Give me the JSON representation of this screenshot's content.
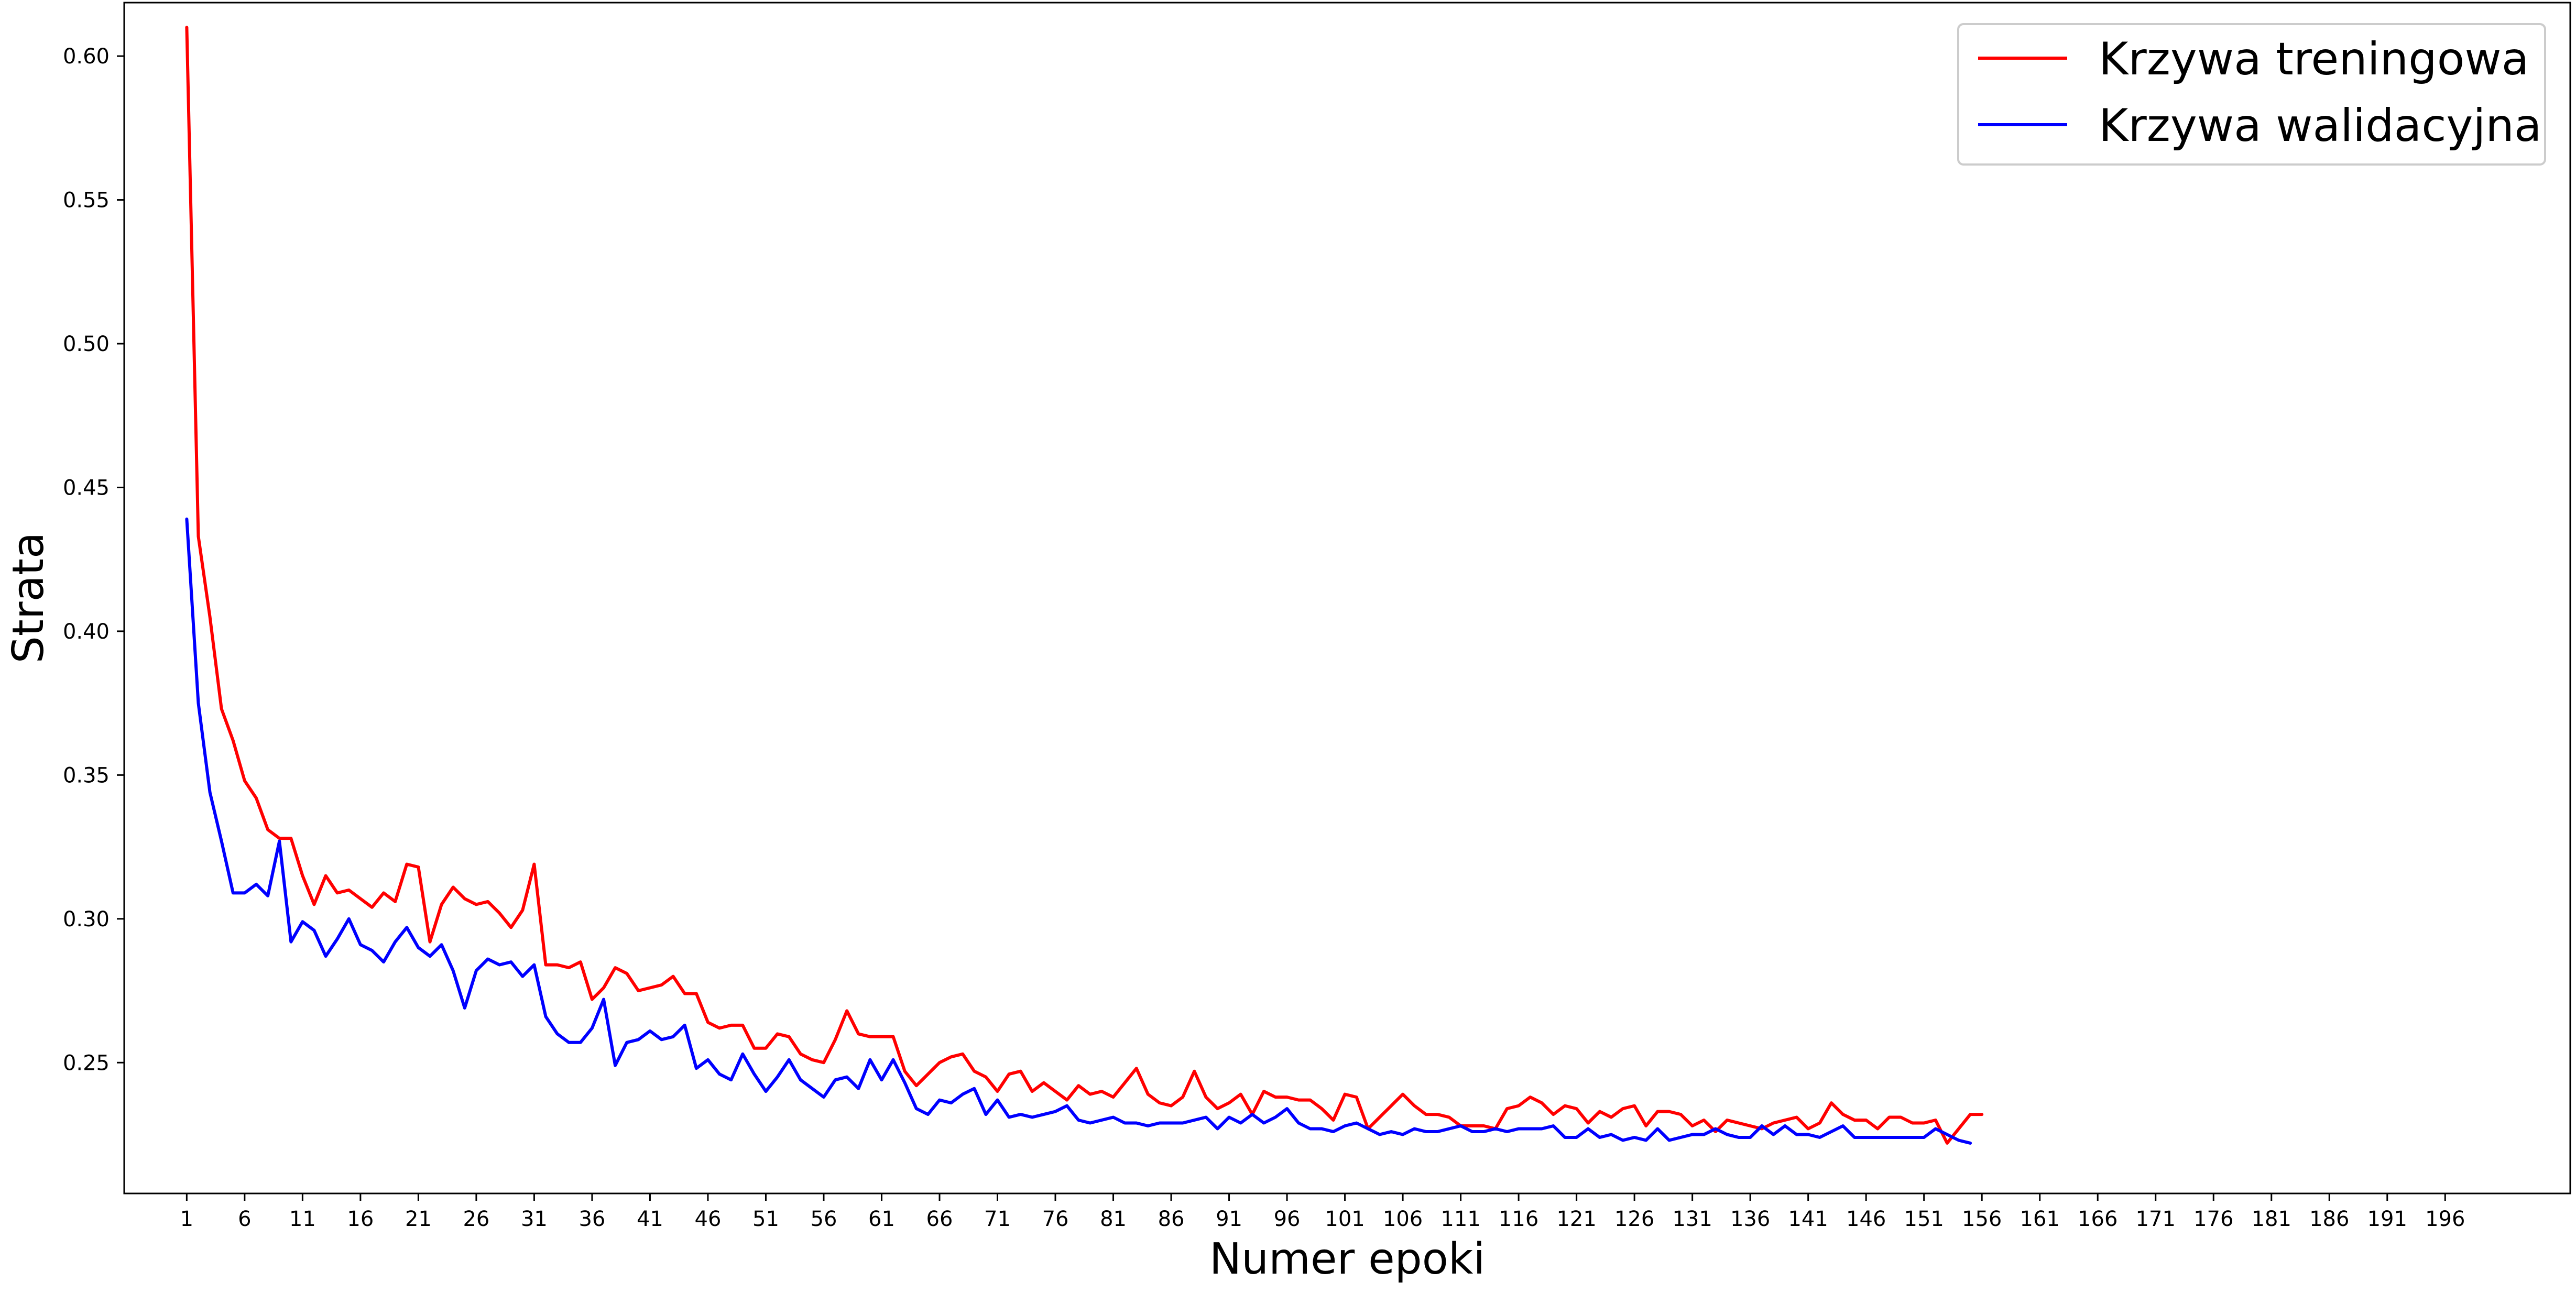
{
  "chart_data": {
    "type": "line",
    "xlabel": "Numer epoki",
    "ylabel": "Strata",
    "xlim": [
      -4.4,
      206.8
    ],
    "ylim": [
      0.2045,
      0.6186
    ],
    "x_ticks": [
      1,
      6,
      11,
      16,
      21,
      26,
      31,
      36,
      41,
      46,
      51,
      56,
      61,
      66,
      71,
      76,
      81,
      86,
      91,
      96,
      101,
      106,
      111,
      116,
      121,
      126,
      131,
      136,
      141,
      146,
      151,
      156,
      161,
      166,
      171,
      176,
      181,
      186,
      191,
      196
    ],
    "y_ticks": [
      0.25,
      0.3,
      0.35,
      0.4,
      0.45,
      0.5,
      0.55,
      0.6
    ],
    "grid": false,
    "legend_position": "top-right",
    "series": [
      {
        "name": "Krzywa treningowa",
        "color": "#ff0000",
        "x_start": 1,
        "values": [
          0.61,
          0.433,
          0.405,
          0.373,
          0.362,
          0.348,
          0.342,
          0.331,
          0.328,
          0.328,
          0.315,
          0.305,
          0.315,
          0.309,
          0.31,
          0.307,
          0.304,
          0.309,
          0.306,
          0.319,
          0.318,
          0.292,
          0.305,
          0.311,
          0.307,
          0.305,
          0.306,
          0.302,
          0.297,
          0.303,
          0.319,
          0.284,
          0.284,
          0.283,
          0.285,
          0.272,
          0.276,
          0.283,
          0.281,
          0.275,
          0.276,
          0.277,
          0.28,
          0.274,
          0.274,
          0.264,
          0.262,
          0.263,
          0.263,
          0.255,
          0.255,
          0.26,
          0.259,
          0.253,
          0.251,
          0.25,
          0.258,
          0.268,
          0.26,
          0.259,
          0.259,
          0.259,
          0.247,
          0.242,
          0.246,
          0.25,
          0.252,
          0.253,
          0.247,
          0.245,
          0.24,
          0.246,
          0.247,
          0.24,
          0.243,
          0.24,
          0.237,
          0.242,
          0.239,
          0.24,
          0.238,
          0.243,
          0.248,
          0.239,
          0.236,
          0.235,
          0.238,
          0.247,
          0.238,
          0.234,
          0.236,
          0.239,
          0.232,
          0.24,
          0.238,
          0.238,
          0.237,
          0.237,
          0.234,
          0.23,
          0.239,
          0.238,
          0.227,
          0.231,
          0.235,
          0.239,
          0.235,
          0.232,
          0.232,
          0.231,
          0.228,
          0.228,
          0.228,
          0.227,
          0.234,
          0.235,
          0.238,
          0.236,
          0.232,
          0.235,
          0.234,
          0.229,
          0.233,
          0.231,
          0.234,
          0.235,
          0.228,
          0.233,
          0.233,
          0.232,
          0.228,
          0.23,
          0.226,
          0.23,
          0.229,
          0.228,
          0.227,
          0.229,
          0.23,
          0.231,
          0.227,
          0.229,
          0.236,
          0.232,
          0.23,
          0.23,
          0.227,
          0.231,
          0.231,
          0.229,
          0.229,
          0.23,
          0.222,
          0.227,
          0.232,
          0.232
        ]
      },
      {
        "name": "Krzywa walidacyjna",
        "color": "#0000ff",
        "x_start": 1,
        "values": [
          0.439,
          0.375,
          0.344,
          0.327,
          0.309,
          0.309,
          0.312,
          0.308,
          0.327,
          0.292,
          0.299,
          0.296,
          0.287,
          0.293,
          0.3,
          0.291,
          0.289,
          0.285,
          0.292,
          0.297,
          0.29,
          0.287,
          0.291,
          0.282,
          0.269,
          0.282,
          0.286,
          0.284,
          0.285,
          0.28,
          0.284,
          0.266,
          0.26,
          0.257,
          0.257,
          0.262,
          0.272,
          0.249,
          0.257,
          0.258,
          0.261,
          0.258,
          0.259,
          0.263,
          0.248,
          0.251,
          0.246,
          0.244,
          0.253,
          0.246,
          0.24,
          0.245,
          0.251,
          0.244,
          0.241,
          0.238,
          0.244,
          0.245,
          0.241,
          0.251,
          0.244,
          0.251,
          0.243,
          0.234,
          0.232,
          0.237,
          0.236,
          0.239,
          0.241,
          0.232,
          0.237,
          0.231,
          0.232,
          0.231,
          0.232,
          0.233,
          0.235,
          0.23,
          0.229,
          0.23,
          0.231,
          0.229,
          0.229,
          0.228,
          0.229,
          0.229,
          0.229,
          0.23,
          0.231,
          0.227,
          0.231,
          0.229,
          0.232,
          0.229,
          0.231,
          0.234,
          0.229,
          0.227,
          0.227,
          0.226,
          0.228,
          0.229,
          0.227,
          0.225,
          0.226,
          0.225,
          0.227,
          0.226,
          0.226,
          0.227,
          0.228,
          0.226,
          0.226,
          0.227,
          0.226,
          0.227,
          0.227,
          0.227,
          0.228,
          0.224,
          0.224,
          0.227,
          0.224,
          0.225,
          0.223,
          0.224,
          0.223,
          0.227,
          0.223,
          0.224,
          0.225,
          0.225,
          0.227,
          0.225,
          0.224,
          0.224,
          0.228,
          0.225,
          0.228,
          0.225,
          0.225,
          0.224,
          0.226,
          0.228,
          0.224,
          0.224,
          0.224,
          0.224,
          0.224,
          0.224,
          0.224,
          0.227,
          0.225,
          0.223,
          0.222
        ]
      }
    ]
  }
}
